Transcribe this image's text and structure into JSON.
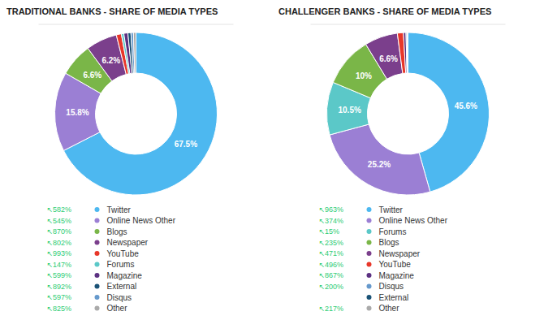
{
  "chart_data": [
    {
      "type": "pie",
      "title": "TRADITIONAL BANKS - SHARE OF MEDIA TYPES",
      "categories": [
        "Twitter",
        "Online News Other",
        "Blogs",
        "Newspaper",
        "YouTube",
        "Forums",
        "Magazine",
        "External",
        "Disqus",
        "Other"
      ],
      "values": [
        67.5,
        15.8,
        6.6,
        6.2,
        1.0,
        0.5,
        0.8,
        0.6,
        0.5,
        0.5
      ],
      "value_labels": [
        "67.5%",
        "15.8%",
        "6.6%",
        "6.2%",
        null,
        null,
        null,
        null,
        null,
        null
      ],
      "colors": [
        "#4db8f0",
        "#9b7fd4",
        "#7ab648",
        "#7b3f8c",
        "#e8372a",
        "#5bc8c8",
        "#5c3182",
        "#1a5276",
        "#6699cc",
        "#aaaaaa"
      ],
      "data_labels": true,
      "legend": "bottom",
      "changes": {
        "color": "#2ecc71",
        "values": [
          582,
          545,
          870,
          802,
          993,
          147,
          599,
          892,
          597,
          825
        ],
        "value_labels": [
          "↖582%",
          "↖545%",
          "↖870%",
          "↖802%",
          "↖993%",
          "↖147%",
          "↖599%",
          "↖892%",
          "↖597%",
          "↖825%"
        ]
      }
    },
    {
      "type": "pie",
      "title": "CHALLENGER BANKS - SHARE OF MEDIA TYPES",
      "categories": [
        "Twitter",
        "Online News Other",
        "Forums",
        "Blogs",
        "Newspaper",
        "YouTube",
        "Magazine",
        "Disqus",
        "External",
        "Other"
      ],
      "values": [
        45.6,
        25.2,
        10.5,
        10.0,
        6.6,
        1.2,
        0.5,
        0.2,
        0.1,
        0.1
      ],
      "value_labels": [
        "45.6%",
        "25.2%",
        "10.5%",
        "10%",
        "6.6%",
        null,
        null,
        null,
        null,
        null
      ],
      "colors": [
        "#4db8f0",
        "#9b7fd4",
        "#5bc8c8",
        "#7ab648",
        "#7b3f8c",
        "#e8372a",
        "#5c3182",
        "#6699cc",
        "#1a5276",
        "#aaaaaa"
      ],
      "data_labels": true,
      "legend": "bottom",
      "changes": {
        "color": "#2ecc71",
        "values": [
          963,
          374,
          15,
          235,
          471,
          496,
          867,
          200,
          null,
          217
        ],
        "value_labels": [
          "↖963%",
          "↖374%",
          "↖15%",
          "↖235%",
          "↖471%",
          "↖496%",
          "↖867%",
          "↖200%",
          null,
          "↖217%"
        ]
      }
    }
  ]
}
